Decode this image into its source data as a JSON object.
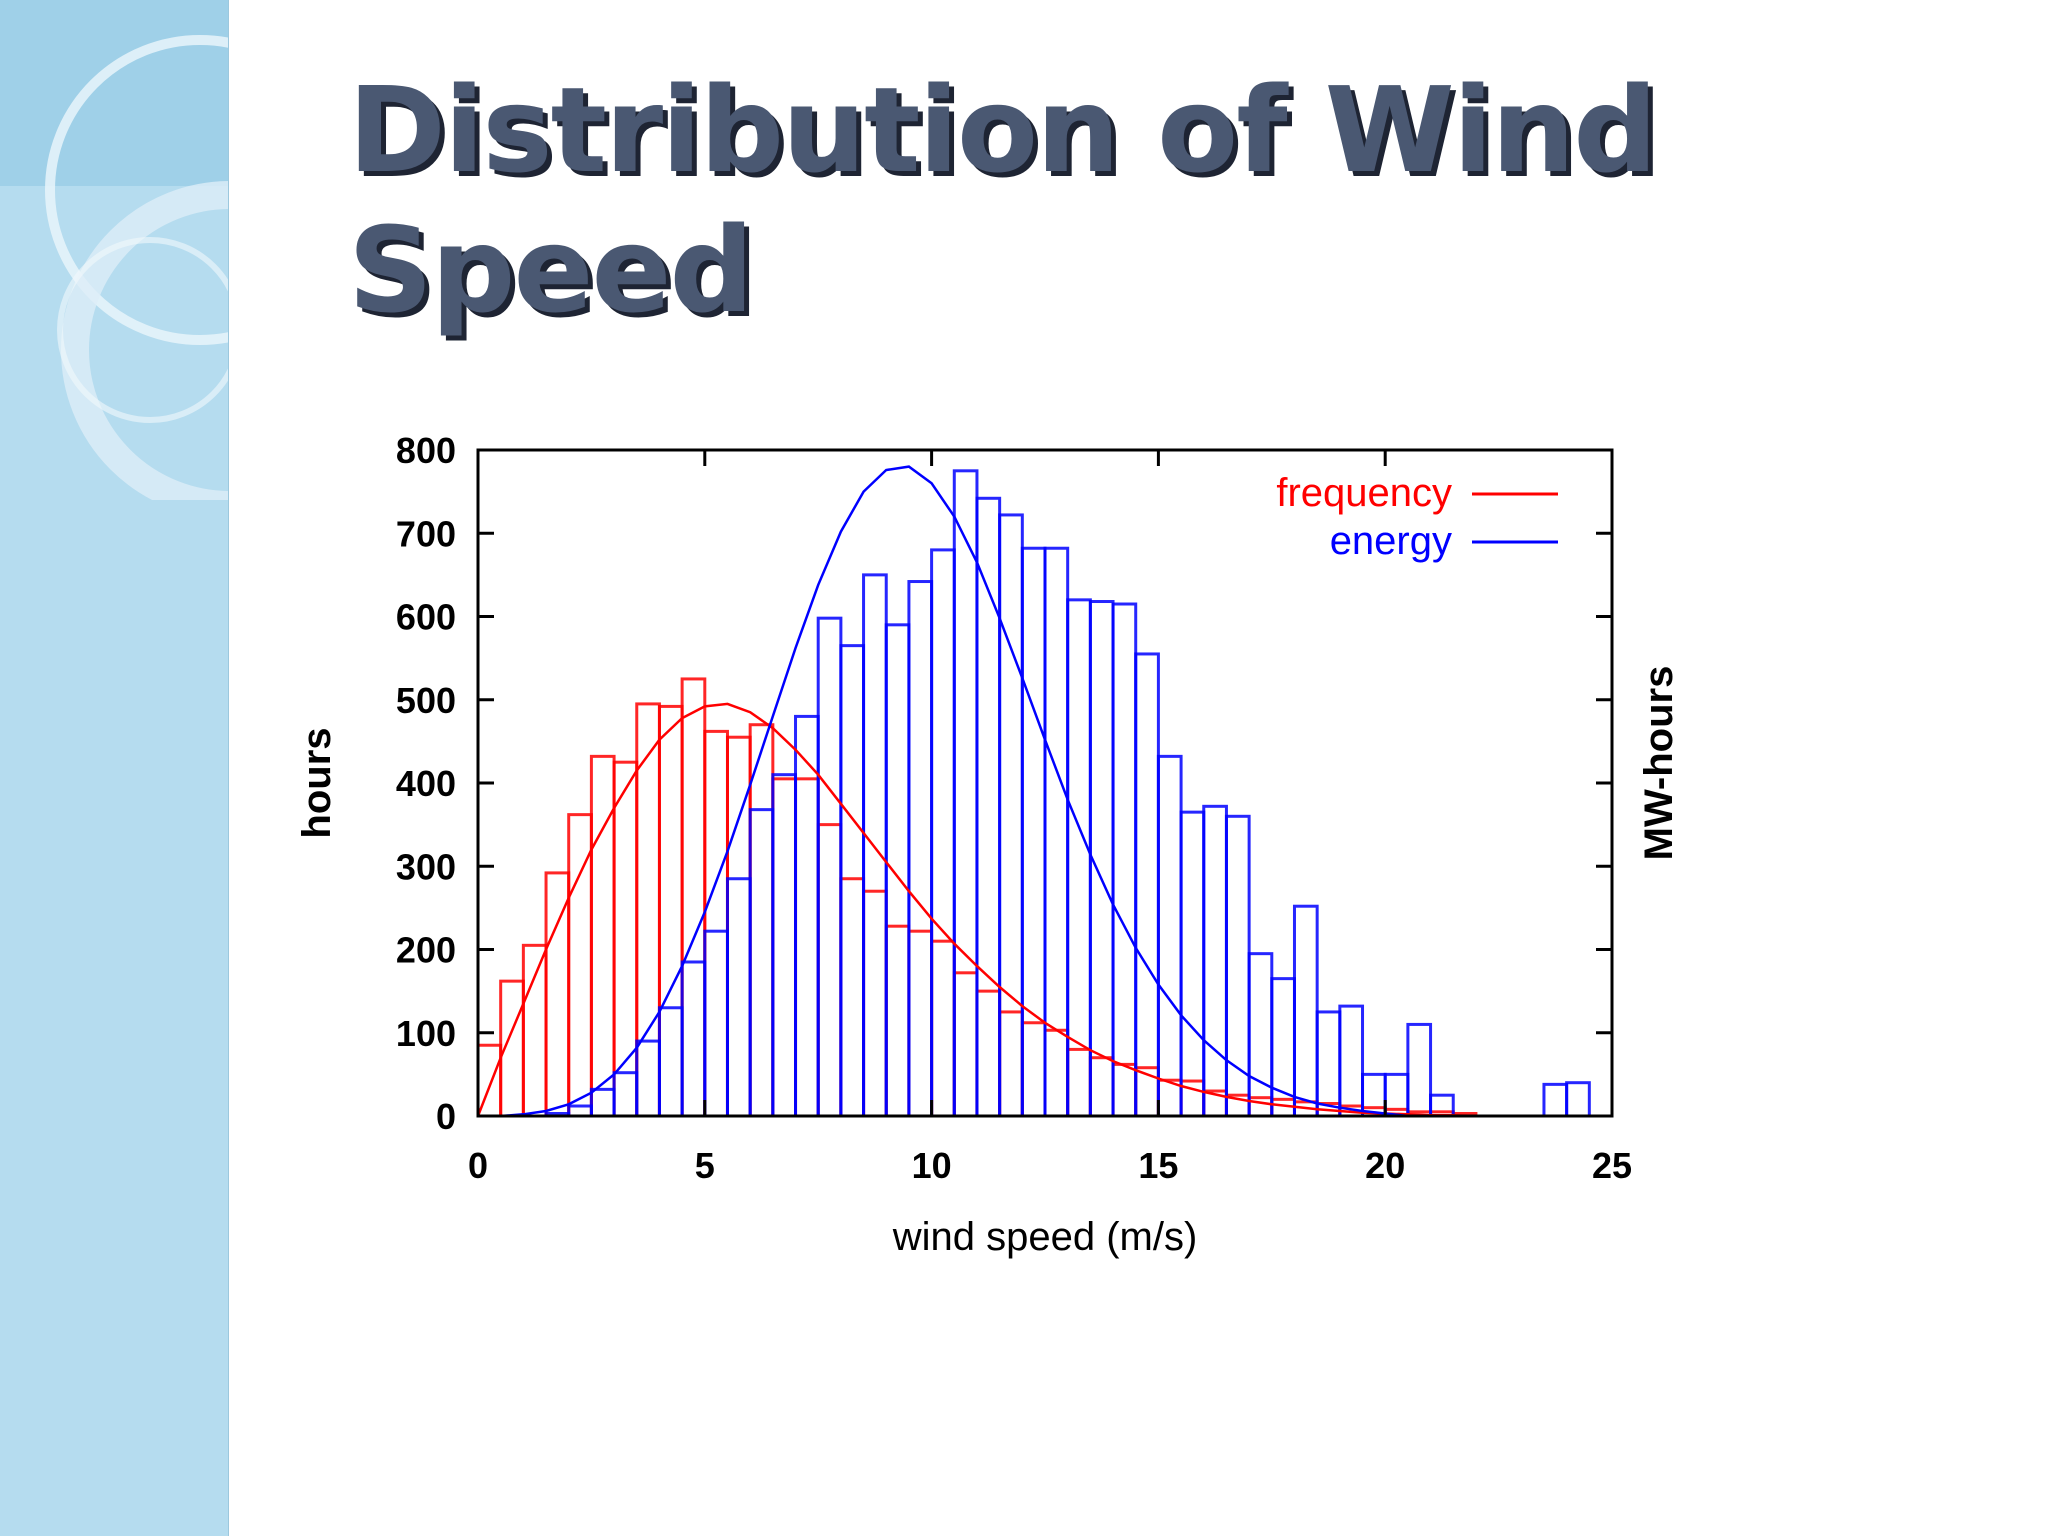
{
  "slide": {
    "title": "Distribution of Wind Speed",
    "colors": {
      "sidebar": "#b5dcef",
      "title": "#4a5872",
      "title_shadow": "#1e2433"
    }
  },
  "chart_data": {
    "type": "bar",
    "xlabel": "wind speed (m/s)",
    "ylabel": "hours",
    "y2label": "MW-hours",
    "xlim": [
      0,
      25
    ],
    "ylim": [
      0,
      800
    ],
    "xticks": [
      0,
      5,
      10,
      15,
      20,
      25
    ],
    "yticks": [
      0,
      100,
      200,
      300,
      400,
      500,
      600,
      700,
      800
    ],
    "bin_width": 0.5,
    "bin_starts": [
      0,
      0.5,
      1,
      1.5,
      2,
      2.5,
      3,
      3.5,
      4,
      4.5,
      5,
      5.5,
      6,
      6.5,
      7,
      7.5,
      8,
      8.5,
      9,
      9.5,
      10,
      10.5,
      11,
      11.5,
      12,
      12.5,
      13,
      13.5,
      14,
      14.5,
      15,
      15.5,
      16,
      16.5,
      17,
      17.5,
      18,
      18.5,
      19,
      19.5,
      20,
      20.5,
      21,
      21.5,
      22,
      22.5,
      23,
      23.5,
      24,
      24.5
    ],
    "legend_position": "top-right",
    "grid": false,
    "series": [
      {
        "name": "frequency",
        "color": "#ff0000",
        "values": [
          85,
          162,
          205,
          292,
          362,
          432,
          425,
          495,
          492,
          525,
          462,
          455,
          470,
          405,
          405,
          350,
          285,
          270,
          228,
          222,
          210,
          172,
          150,
          125,
          112,
          103,
          80,
          70,
          62,
          58,
          43,
          42,
          30,
          25,
          22,
          20,
          17,
          15,
          12,
          10,
          8,
          5,
          5,
          3,
          0,
          0,
          0,
          0,
          0,
          0
        ],
        "fit": [
          0,
          70,
          135,
          200,
          262,
          320,
          370,
          415,
          452,
          478,
          492,
          495,
          485,
          466,
          440,
          410,
          375,
          340,
          305,
          270,
          237,
          207,
          180,
          155,
          132,
          112,
          95,
          79,
          66,
          55,
          45,
          36,
          29,
          23,
          18,
          14,
          11,
          8,
          6,
          4,
          3,
          2,
          1,
          1,
          0,
          0,
          0,
          0,
          0,
          0
        ]
      },
      {
        "name": "energy",
        "color": "#0000ff",
        "values": [
          0,
          0,
          0,
          3,
          12,
          32,
          52,
          90,
          130,
          185,
          222,
          285,
          368,
          410,
          480,
          598,
          565,
          650,
          590,
          642,
          680,
          775,
          742,
          722,
          682,
          682,
          620,
          618,
          615,
          555,
          432,
          365,
          372,
          360,
          195,
          165,
          252,
          125,
          132,
          50,
          50,
          110,
          25,
          0,
          0,
          0,
          0,
          38,
          40,
          0
        ],
        "fit": [
          0,
          0,
          2,
          6,
          14,
          28,
          50,
          82,
          125,
          180,
          245,
          318,
          398,
          480,
          562,
          638,
          702,
          750,
          776,
          780,
          760,
          720,
          665,
          598,
          526,
          452,
          380,
          314,
          254,
          202,
          158,
          121,
          91,
          67,
          48,
          34,
          23,
          15,
          10,
          6,
          3,
          0,
          0,
          0,
          0,
          0,
          0,
          0,
          0,
          0
        ]
      }
    ]
  }
}
